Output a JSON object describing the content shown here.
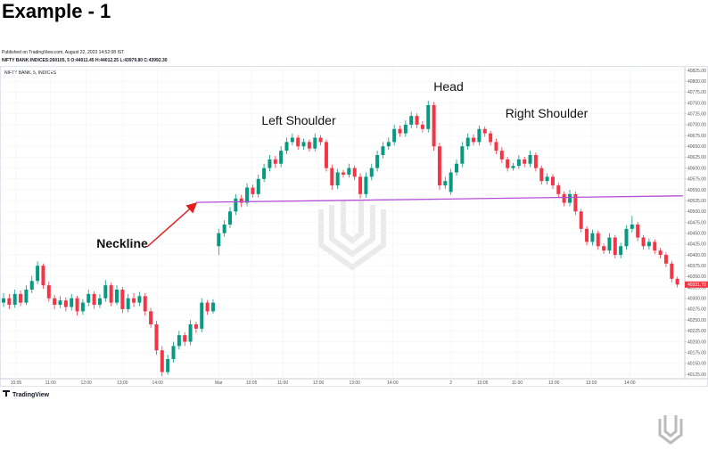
{
  "page_title": "Example - 1",
  "published": "Published on TradingView.com, August 22, 2023 14:52:08 IST",
  "symbol_info": "NIFTY BANK:INDICES:260105, 5 O:44011.45 H:44012.25 L:43979.80 C:43992.30",
  "chart_data": {
    "type": "candlestick",
    "pane_label": "NIFTY BANK, 5, INDICES",
    "up_color": "#089981",
    "down_color": "#f23645",
    "grid": true,
    "annotations": {
      "head": "Head",
      "left_shoulder": "Left Shoulder",
      "right_shoulder": "Right Shoulder",
      "neckline": "Neckline"
    },
    "neckline": {
      "x": [
        34,
        120
      ],
      "y": [
        40521,
        40536
      ],
      "color": "#b44fd6"
    },
    "ylim": [
      40125,
      40825
    ],
    "yticks": [
      {
        "value": 40125,
        "label": "40125.00"
      },
      {
        "value": 40150,
        "label": "40150.00"
      },
      {
        "value": 40175,
        "label": "40175.00"
      },
      {
        "value": 40200,
        "label": "40200.00"
      },
      {
        "value": 40225,
        "label": "40225.00"
      },
      {
        "value": 40250,
        "label": "40250.00"
      },
      {
        "value": 40275,
        "label": "40275.00"
      },
      {
        "value": 40300,
        "label": "40300.00"
      },
      {
        "value": 40325,
        "label": "40325.00"
      },
      {
        "value": 40350,
        "label": "40350.00"
      },
      {
        "value": 40375,
        "label": "40375.00"
      },
      {
        "value": 40400,
        "label": "40400.00"
      },
      {
        "value": 40425,
        "label": "40425.00"
      },
      {
        "value": 40450,
        "label": "40450.00"
      },
      {
        "value": 40475,
        "label": "40475.00"
      },
      {
        "value": 40500,
        "label": "40500.00"
      },
      {
        "value": 40525,
        "label": "40525.00"
      },
      {
        "value": 40550,
        "label": "40550.00"
      },
      {
        "value": 40575,
        "label": "40575.00"
      },
      {
        "value": 40600,
        "label": "40600.00"
      },
      {
        "value": 40625,
        "label": "40625.00"
      },
      {
        "value": 40650,
        "label": "40650.00"
      },
      {
        "value": 40675,
        "label": "40675.00"
      },
      {
        "value": 40700,
        "label": "40700.00"
      },
      {
        "value": 40725,
        "label": "40725.00"
      },
      {
        "value": 40750,
        "label": "40750.00"
      },
      {
        "value": 40775,
        "label": "40775.00"
      },
      {
        "value": 40800,
        "label": "40800.00"
      },
      {
        "value": 40825,
        "label": "40825.00"
      }
    ],
    "last_price": {
      "value": 40331.7,
      "label": "40331.70"
    },
    "xticks": [
      {
        "value": 2.2,
        "label": "10:05"
      },
      {
        "value": 8.3,
        "label": "11:00"
      },
      {
        "value": 14.6,
        "label": "12:00"
      },
      {
        "value": 21,
        "label": "13:00"
      },
      {
        "value": 27.2,
        "label": "14:00"
      },
      {
        "value": 38,
        "label": "Mar"
      },
      {
        "value": 43.8,
        "label": "10:05"
      },
      {
        "value": 49.3,
        "label": "11:00"
      },
      {
        "value": 55.6,
        "label": "12:00"
      },
      {
        "value": 62,
        "label": "13:00"
      },
      {
        "value": 68.7,
        "label": "14:00"
      },
      {
        "value": 79,
        "label": "2"
      },
      {
        "value": 84.6,
        "label": "10:05"
      },
      {
        "value": 90.7,
        "label": "11:00"
      },
      {
        "value": 97.2,
        "label": "12:00"
      },
      {
        "value": 103.8,
        "label": "13:00"
      },
      {
        "value": 110.6,
        "label": "14:00"
      }
    ],
    "ohlc": [
      [
        40290,
        40312,
        40280,
        40300
      ],
      [
        40300,
        40310,
        40275,
        40285
      ],
      [
        40285,
        40320,
        40278,
        40310
      ],
      [
        40310,
        40318,
        40282,
        40290
      ],
      [
        40290,
        40330,
        40285,
        40320
      ],
      [
        40320,
        40352,
        40312,
        40340
      ],
      [
        40340,
        40385,
        40332,
        40375
      ],
      [
        40375,
        40380,
        40322,
        40330
      ],
      [
        40330,
        40338,
        40292,
        40300
      ],
      [
        40300,
        40308,
        40275,
        40285
      ],
      [
        40285,
        40305,
        40278,
        40295
      ],
      [
        40295,
        40302,
        40270,
        40280
      ],
      [
        40280,
        40310,
        40272,
        40300
      ],
      [
        40300,
        40306,
        40260,
        40270
      ],
      [
        40270,
        40298,
        40262,
        40290
      ],
      [
        40290,
        40320,
        40282,
        40310
      ],
      [
        40310,
        40316,
        40276,
        40285
      ],
      [
        40285,
        40310,
        40278,
        40300
      ],
      [
        40300,
        40342,
        40292,
        40330
      ],
      [
        40330,
        40336,
        40282,
        40290
      ],
      [
        40290,
        40330,
        40284,
        40320
      ],
      [
        40320,
        40326,
        40266,
        40275
      ],
      [
        40275,
        40310,
        40268,
        40300
      ],
      [
        40300,
        40312,
        40280,
        40290
      ],
      [
        40290,
        40315,
        40282,
        40305
      ],
      [
        40305,
        40312,
        40260,
        40270
      ],
      [
        40270,
        40278,
        40232,
        40240
      ],
      [
        40240,
        40248,
        40170,
        40180
      ],
      [
        40180,
        40190,
        40120,
        40130
      ],
      [
        40130,
        40170,
        40124,
        40160
      ],
      [
        40160,
        40200,
        40152,
        40190
      ],
      [
        40190,
        40225,
        40182,
        40215
      ],
      [
        40215,
        40222,
        40190,
        40200
      ],
      [
        40200,
        40250,
        40192,
        40240
      ],
      [
        40240,
        40246,
        40220,
        40230
      ],
      [
        40230,
        40300,
        40222,
        40290
      ],
      [
        40290,
        40296,
        40262,
        40270
      ],
      [
        40270,
        40298,
        40264,
        40290
      ],
      [
        40420,
        40460,
        40400,
        40450
      ],
      [
        40450,
        40480,
        40442,
        40470
      ],
      [
        40470,
        40510,
        40462,
        40500
      ],
      [
        40500,
        40540,
        40492,
        40530
      ],
      [
        40530,
        40538,
        40510,
        40520
      ],
      [
        40520,
        40565,
        40512,
        40555
      ],
      [
        40555,
        40562,
        40532,
        40540
      ],
      [
        40540,
        40585,
        40532,
        40575
      ],
      [
        40575,
        40610,
        40568,
        40600
      ],
      [
        40600,
        40630,
        40592,
        40620
      ],
      [
        40620,
        40628,
        40600,
        40610
      ],
      [
        40610,
        40650,
        40602,
        40640
      ],
      [
        40640,
        40670,
        40632,
        40660
      ],
      [
        40660,
        40680,
        40652,
        40670
      ],
      [
        40670,
        40676,
        40642,
        40650
      ],
      [
        40650,
        40668,
        40642,
        40660
      ],
      [
        40660,
        40666,
        40638,
        40645
      ],
      [
        40645,
        40680,
        40638,
        40670
      ],
      [
        40670,
        40676,
        40652,
        40660
      ],
      [
        40660,
        40666,
        40592,
        40600
      ],
      [
        40600,
        40608,
        40550,
        40560
      ],
      [
        40560,
        40598,
        40552,
        40590
      ],
      [
        40590,
        40596,
        40578,
        40585
      ],
      [
        40585,
        40610,
        40578,
        40600
      ],
      [
        40600,
        40606,
        40572,
        40580
      ],
      [
        40580,
        40588,
        40530,
        40540
      ],
      [
        40540,
        40590,
        40532,
        40580
      ],
      [
        40580,
        40610,
        40572,
        40600
      ],
      [
        40600,
        40640,
        40592,
        40630
      ],
      [
        40630,
        40660,
        40622,
        40650
      ],
      [
        40650,
        40670,
        40642,
        40660
      ],
      [
        40660,
        40700,
        40652,
        40690
      ],
      [
        40690,
        40698,
        40672,
        40680
      ],
      [
        40680,
        40710,
        40672,
        40700
      ],
      [
        40700,
        40730,
        40692,
        40720
      ],
      [
        40720,
        40726,
        40692,
        40700
      ],
      [
        40700,
        40708,
        40682,
        40690
      ],
      [
        40690,
        40755,
        40682,
        40745
      ],
      [
        40745,
        40752,
        40640,
        40650
      ],
      [
        40650,
        40658,
        40550,
        40560
      ],
      [
        40560,
        40580,
        40552,
        40570
      ],
      [
        40545,
        40598,
        40538,
        40590
      ],
      [
        40590,
        40620,
        40582,
        40610
      ],
      [
        40610,
        40660,
        40602,
        40650
      ],
      [
        40650,
        40680,
        40642,
        40670
      ],
      [
        40670,
        40678,
        40652,
        40660
      ],
      [
        40660,
        40698,
        40652,
        40690
      ],
      [
        40690,
        40696,
        40672,
        40680
      ],
      [
        40680,
        40686,
        40652,
        40660
      ],
      [
        40660,
        40668,
        40632,
        40640
      ],
      [
        40640,
        40648,
        40612,
        40620
      ],
      [
        40620,
        40626,
        40592,
        40600
      ],
      [
        40600,
        40612,
        40594,
        40605
      ],
      [
        40605,
        40630,
        40598,
        40620
      ],
      [
        40620,
        40626,
        40602,
        40610
      ],
      [
        40610,
        40640,
        40602,
        40630
      ],
      [
        40630,
        40636,
        40592,
        40600
      ],
      [
        40600,
        40606,
        40562,
        40570
      ],
      [
        40570,
        40588,
        40562,
        40580
      ],
      [
        40580,
        40586,
        40552,
        40560
      ],
      [
        40560,
        40566,
        40532,
        40540
      ],
      [
        40540,
        40546,
        40512,
        40520
      ],
      [
        40520,
        40550,
        40512,
        40540
      ],
      [
        40540,
        40546,
        40492,
        40500
      ],
      [
        40500,
        40506,
        40452,
        40460
      ],
      [
        40460,
        40466,
        40422,
        40430
      ],
      [
        40430,
        40458,
        40422,
        40450
      ],
      [
        40450,
        40456,
        40412,
        40420
      ],
      [
        40420,
        40426,
        40402,
        40410
      ],
      [
        40410,
        40450,
        40402,
        40440
      ],
      [
        40440,
        40446,
        40392,
        40400
      ],
      [
        40400,
        40428,
        40392,
        40420
      ],
      [
        40420,
        40468,
        40412,
        40460
      ],
      [
        40460,
        40490,
        40452,
        40470
      ],
      [
        40470,
        40476,
        40432,
        40440
      ],
      [
        40440,
        40446,
        40412,
        40420
      ],
      [
        40420,
        40438,
        40412,
        40430
      ],
      [
        40430,
        40436,
        40402,
        40410
      ],
      [
        40410,
        40416,
        40392,
        40400
      ],
      [
        40400,
        40406,
        40372,
        40380
      ],
      [
        40380,
        40386,
        40337,
        40345
      ],
      [
        40345,
        40350,
        40325,
        40331.7
      ]
    ],
    "source": "TradingView"
  }
}
